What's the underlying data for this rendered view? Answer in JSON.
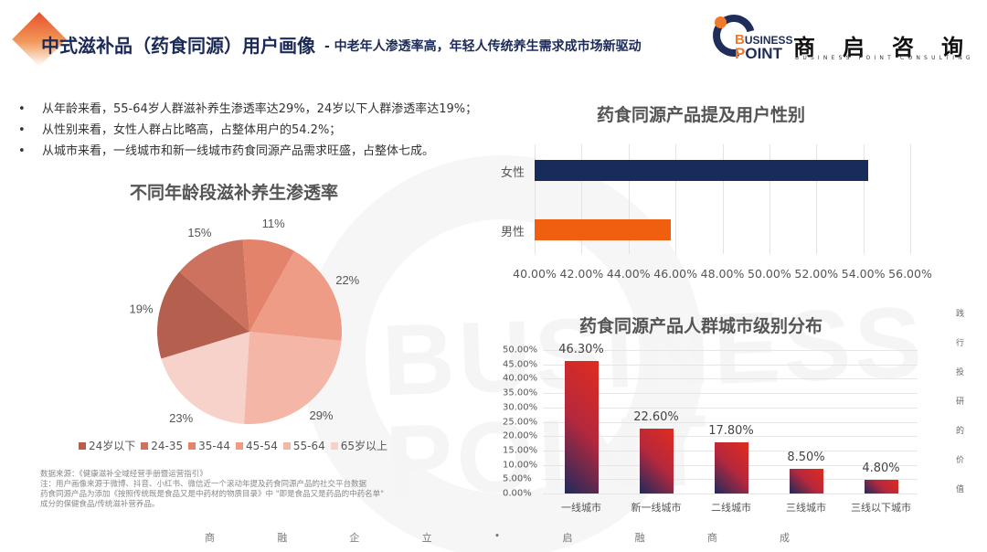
{
  "header": {
    "title": "中式滋补品（药食同源）用户画像",
    "subtitle": "- 中老年人渗透率高，年轻人传统养生需求成市场新驱动",
    "accent_color": "#e8502a",
    "title_color": "#1b2a57"
  },
  "logo": {
    "line1_initial": "B",
    "line1_rest": "USINESS",
    "line2_initial": "P",
    "line2_rest": "OINT",
    "cn": [
      "商",
      "启",
      "咨",
      "询"
    ],
    "en": "BUSINESS POINT CONSULTING",
    "watermark": "BUSINESS POINT"
  },
  "bullets": [
    "从年龄来看，55-64岁人群滋补养生渗透率达29%，24岁以下人群渗透率达19%；",
    "从性别来看，女性人群占比略高，占整体用户的54.2%；",
    "从城市来看，一线城市和新一线城市药食同源产品需求旺盛，占整体七成。"
  ],
  "bullet_symbol": "•",
  "chart_data": [
    {
      "type": "pie",
      "title": "不同年龄段滋补养生渗透率",
      "categories": [
        "24岁以下",
        "24-35",
        "35-44",
        "45-54",
        "55-64",
        "65岁以上"
      ],
      "values": [
        19,
        15,
        11,
        22,
        29,
        23
      ],
      "labels": [
        "19%",
        "15%",
        "11%",
        "22%",
        "29%",
        "23%"
      ],
      "colors": [
        "#b5604e",
        "#cc725e",
        "#e4836b",
        "#ef9c86",
        "#f4b6a7",
        "#f7d2ca"
      ],
      "legend_position": "bottom"
    },
    {
      "type": "bar",
      "orientation": "horizontal",
      "title": "药食同源产品提及用户性别",
      "categories": [
        "女性",
        "男性"
      ],
      "values": [
        54.2,
        45.8
      ],
      "colors": [
        "#172c5a",
        "#ef5f0f"
      ],
      "xlim": [
        40,
        56
      ],
      "xticks": [
        "40.00%",
        "42.00%",
        "44.00%",
        "46.00%",
        "48.00%",
        "50.00%",
        "52.00%",
        "54.00%",
        "56.00%"
      ],
      "grid": true
    },
    {
      "type": "bar",
      "title": "药食同源产品人群城市级别分布",
      "categories": [
        "一线城市",
        "新一线城市",
        "二线城市",
        "三线城市",
        "三线以下城市"
      ],
      "values": [
        46.3,
        22.6,
        17.8,
        8.5,
        4.8
      ],
      "labels": [
        "46.30%",
        "22.60%",
        "17.80%",
        "8.50%",
        "4.80%"
      ],
      "ylim": [
        0,
        50
      ],
      "yticks": [
        "50.00%",
        "45.00%",
        "40.00%",
        "35.00%",
        "30.00%",
        "25.00%",
        "20.00%",
        "15.00%",
        "10.00%",
        "5.00%",
        "0.00%"
      ],
      "grid": true,
      "gradient": [
        "#1f2a5c",
        "#e02c1f"
      ]
    }
  ],
  "notes": [
    "数据来源：《健康滋补全域经营手册暨运营指引》",
    "注：用户画像来源于微博、抖音、小红书、微信近一个滚动年提及药食同源产品的社交平台数据",
    "药食同源产品为添加《按照传统既是食品又是中药材的物质目录》中 \"即是食品又是药品的中药名单\"",
    "成分的保健食品/传统滋补营养品。"
  ],
  "side_text": [
    "践",
    "行",
    "投",
    "研",
    "的",
    "价",
    "值"
  ],
  "footer": [
    "商",
    "融",
    "企",
    "立",
    "•",
    "启",
    "融",
    "商",
    "成"
  ]
}
